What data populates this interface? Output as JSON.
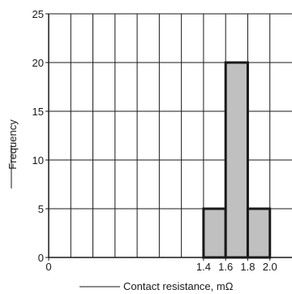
{
  "chart_data": {
    "type": "bar",
    "title": "",
    "xlabel": "Contact resistance, mΩ",
    "ylabel": "Frequency",
    "xlim": [
      0,
      2.2
    ],
    "ylim": [
      0,
      25
    ],
    "grid": true,
    "x_tick_labels": [
      "0",
      "1.4",
      "1.6",
      "1.8",
      "2.0"
    ],
    "y_tick_labels": [
      "0",
      "5",
      "10",
      "15",
      "20",
      "25"
    ],
    "bins": [
      {
        "from": 1.4,
        "to": 1.6,
        "value": 5
      },
      {
        "from": 1.6,
        "to": 1.8,
        "value": 20
      },
      {
        "from": 1.8,
        "to": 2.0,
        "value": 5
      }
    ],
    "colors": {
      "bar_fill": "#c0c0c0",
      "bar_stroke": "#1a1a1a",
      "grid": "#1a1a1a"
    }
  }
}
